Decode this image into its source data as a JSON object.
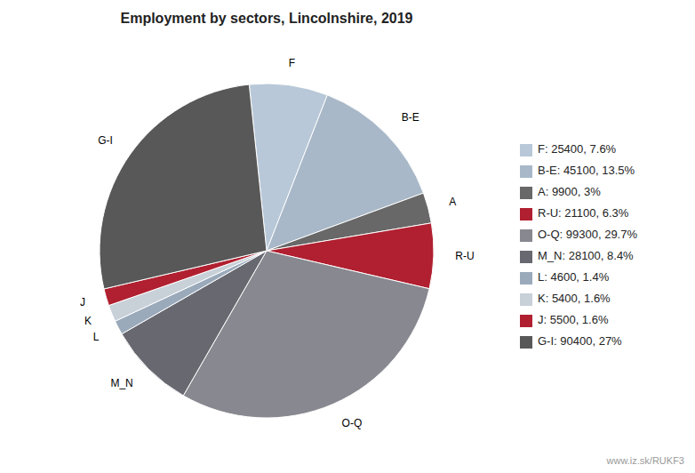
{
  "chart_data": {
    "type": "pie",
    "title": "Employment by sectors, Lincolnshire, 2019",
    "categories": [
      "F",
      "B-E",
      "A",
      "R-U",
      "O-Q",
      "M_N",
      "L",
      "K",
      "J",
      "G-I"
    ],
    "values": [
      25400,
      45100,
      9900,
      21100,
      99300,
      28100,
      4600,
      5400,
      5500,
      90400
    ],
    "value_labels": [
      "F: 25400, 7.6%",
      "B-E: 45100, 13.5%",
      "A: 9900, 3%",
      "R-U: 21100, 6.3%",
      "O-Q: 99300, 29.7%",
      "M_N: 28100, 8.4%",
      "L: 4600, 1.4%",
      "K: 5400, 1.6%",
      "J: 5500, 1.6%",
      "G-I: 90400, 27%"
    ],
    "colors": [
      "#B8C8D8",
      "#A8B8C8",
      "#686868",
      "#B02030",
      "#888890",
      "#686870",
      "#9AAABB",
      "#C8D0D8",
      "#B02030",
      "#585858"
    ],
    "legend": "right",
    "annotations": [
      "www.iz.sk/RUKF3"
    ]
  }
}
